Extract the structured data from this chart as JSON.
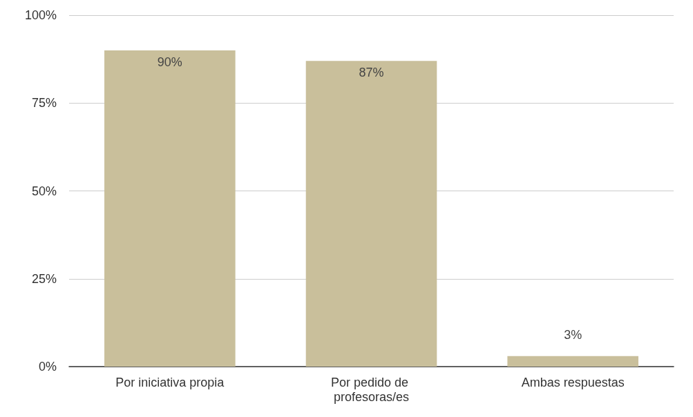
{
  "chart_data": {
    "type": "bar",
    "categories": [
      "Por iniciativa propia",
      "Por pedido de profesoras/es",
      "Ambas respuestas"
    ],
    "values": [
      90,
      87,
      3
    ],
    "color": "#c9bf9b",
    "value_labels": [
      "90%",
      "87%",
      "3%"
    ],
    "ylim": [
      0,
      100
    ],
    "yticks": [
      {
        "value": 0,
        "label": "0%"
      },
      {
        "value": 25,
        "label": "25%"
      },
      {
        "value": 50,
        "label": "50%"
      },
      {
        "value": 75,
        "label": "75%"
      },
      {
        "value": 100,
        "label": "100%"
      }
    ],
    "grid": "y"
  }
}
